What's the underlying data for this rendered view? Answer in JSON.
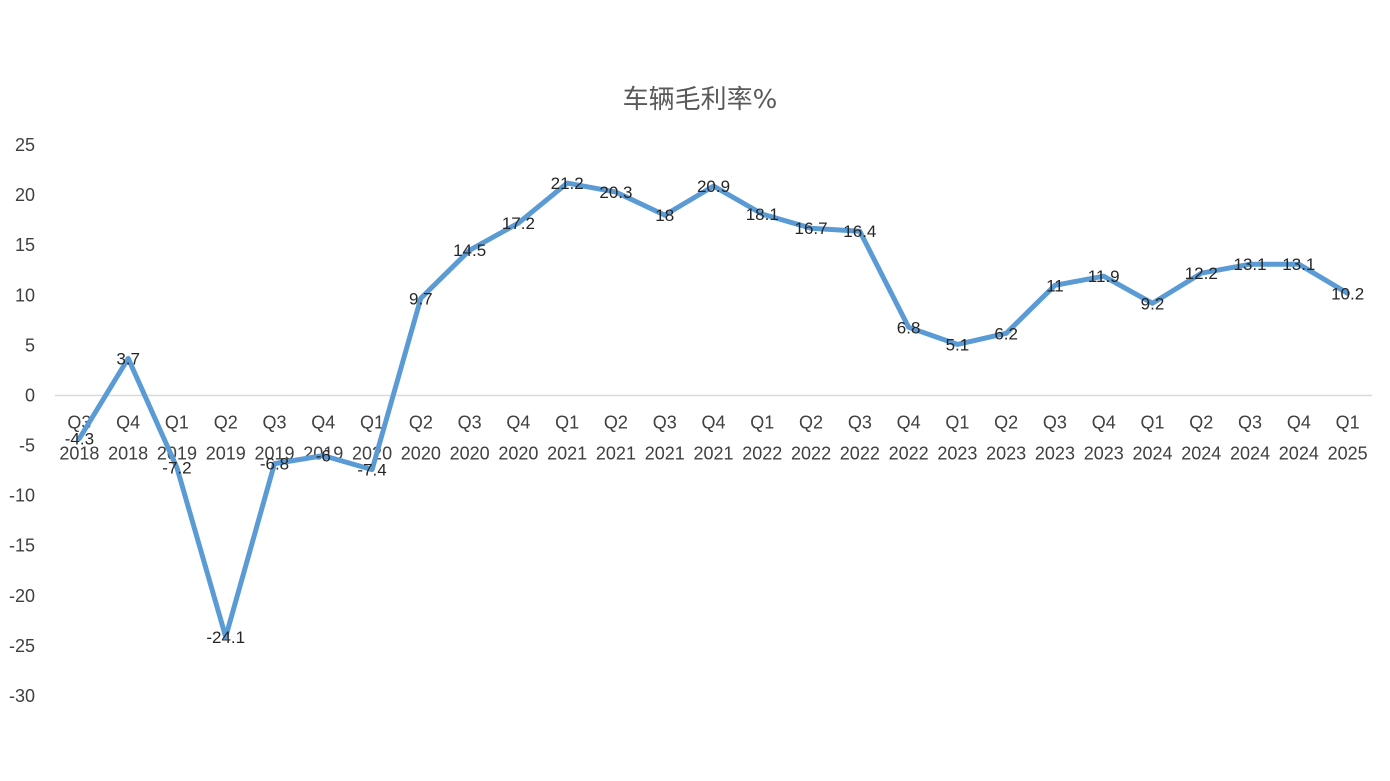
{
  "chart_data": {
    "type": "line",
    "title": "车辆毛利率%",
    "xlabel": "",
    "ylabel": "",
    "ylim": [
      -30,
      25
    ],
    "yticks": [
      25,
      20,
      15,
      10,
      5,
      0,
      -5,
      -10,
      -15,
      -20,
      -25,
      -30
    ],
    "grid": false,
    "legend": "none",
    "line_color": "#5B9BD5",
    "categories": [
      "Q3 2018",
      "Q4 2018",
      "Q1 2019",
      "Q2 2019",
      "Q3 2019",
      "Q4 2019",
      "Q1 2020",
      "Q2 2020",
      "Q3 2020",
      "Q4 2020",
      "Q1 2021",
      "Q2 2021",
      "Q3 2021",
      "Q4 2021",
      "Q1 2022",
      "Q2 2022",
      "Q3 2022",
      "Q4 2022",
      "Q1 2023",
      "Q2 2023",
      "Q3 2023",
      "Q4 2023",
      "Q1 2024",
      "Q2 2024",
      "Q3 2024",
      "Q4 2024",
      "Q1 2025"
    ],
    "category_lines": [
      [
        "Q3",
        "2018"
      ],
      [
        "Q4",
        "2018"
      ],
      [
        "Q1",
        "2019"
      ],
      [
        "Q2",
        "2019"
      ],
      [
        "Q3",
        "2019"
      ],
      [
        "Q4",
        "2019"
      ],
      [
        "Q1",
        "2020"
      ],
      [
        "Q2",
        "2020"
      ],
      [
        "Q3",
        "2020"
      ],
      [
        "Q4",
        "2020"
      ],
      [
        "Q1",
        "2021"
      ],
      [
        "Q2",
        "2021"
      ],
      [
        "Q3",
        "2021"
      ],
      [
        "Q4",
        "2021"
      ],
      [
        "Q1",
        "2022"
      ],
      [
        "Q2",
        "2022"
      ],
      [
        "Q3",
        "2022"
      ],
      [
        "Q4",
        "2022"
      ],
      [
        "Q1",
        "2023"
      ],
      [
        "Q2",
        "2023"
      ],
      [
        "Q3",
        "2023"
      ],
      [
        "Q4",
        "2023"
      ],
      [
        "Q1",
        "2024"
      ],
      [
        "Q2",
        "2024"
      ],
      [
        "Q3",
        "2024"
      ],
      [
        "Q4",
        "2024"
      ],
      [
        "Q1",
        "2025"
      ]
    ],
    "values": [
      -4.3,
      3.7,
      -7.2,
      -24.1,
      -6.8,
      -6,
      -7.4,
      9.7,
      14.5,
      17.2,
      21.2,
      20.3,
      18,
      20.9,
      18.1,
      16.7,
      16.4,
      6.8,
      5.1,
      6.2,
      11,
      11.9,
      9.2,
      12.2,
      13.1,
      13.1,
      10.2
    ],
    "value_labels": [
      "-4.3",
      "3.7",
      "-7.2",
      "-24.1",
      "-6.8",
      "-6",
      "-7.4",
      "9.7",
      "14.5",
      "17.2",
      "21.2",
      "20.3",
      "18",
      "20.9",
      "18.1",
      "16.7",
      "16.4",
      "6.8",
      "5.1",
      "6.2",
      "11",
      "11.9",
      "9.2",
      "12.2",
      "13.1",
      "13.1",
      "10.2"
    ]
  }
}
